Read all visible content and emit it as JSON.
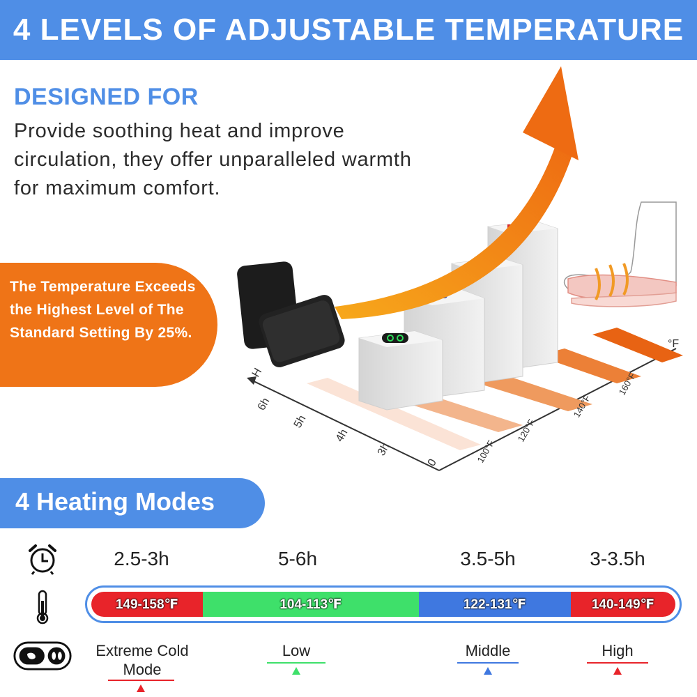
{
  "header": {
    "title": "4 LEVELS OF ADJUSTABLE TEMPERATURE"
  },
  "designed": {
    "title": "DESIGNED FOR",
    "description": "Provide soothing heat and improve circulation, they offer unparalleled warmth for maximum comfort."
  },
  "badge": {
    "text": "The Temperature Exceeds the Highest Level of The Standard Setting By 25%."
  },
  "axis": {
    "y_unit": "H",
    "y_labels": [
      "6h",
      "5h",
      "4h",
      "3h"
    ],
    "origin": "0",
    "x_unit": "°F",
    "x_labels": [
      "100°F",
      "120°F",
      "140°F",
      "160°F"
    ]
  },
  "modes": {
    "title": "4 Heating Modes",
    "durations": [
      "2.5-3h",
      "5-6h",
      "3.5-5h",
      "3-3.5h"
    ],
    "temperatures": [
      "149-158℉",
      "104-113℉",
      "122-131℉",
      "140-149℉"
    ],
    "labels": [
      "Extreme Cold Mode",
      "Low",
      "Middle",
      "High"
    ]
  },
  "colors": {
    "header_blue": "#4f8ee6",
    "accent_orange": "#ef7417",
    "extreme_red": "#e8242a",
    "low_green": "#3ee06a",
    "middle_blue": "#3f78e0",
    "high_red": "#e8242a"
  },
  "icons": {
    "clock": "alarm-clock-icon",
    "thermo": "thermometer-icon",
    "remote": "remote-control-icon"
  }
}
